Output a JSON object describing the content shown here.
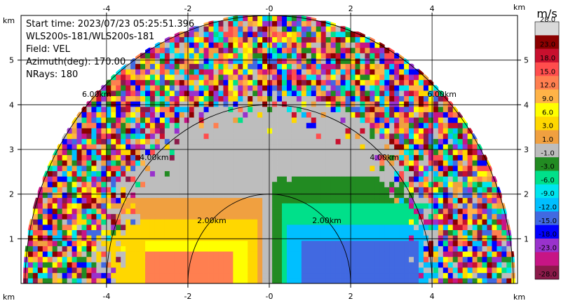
{
  "info": {
    "start_time": "Start time: 2023/07/23 05:25:51.396",
    "instrument": "WLS200s-181/WLS200s-181",
    "field": "Field: VEL",
    "azimuth": "Azimuth(deg): 170.00",
    "nrays": "NRays: 180"
  },
  "colorbar": {
    "unit": "m/s",
    "labels": [
      "28.0",
      "23.0",
      "18.0",
      "15.0",
      "12.0",
      "9.0",
      "6.0",
      "3.0",
      "1.0",
      "-1.0",
      "-3.0",
      "-6.0",
      "-9.0",
      "-12.0",
      "-15.0",
      "-18.0",
      "-23.0",
      "-28.0"
    ],
    "colors": [
      "#d9d9d9",
      "#8b0000",
      "#c8102e",
      "#ff4d4d",
      "#ff7f50",
      "#ffb347",
      "#ffff00",
      "#ffd700",
      "#f0a040",
      "#bdbdbd",
      "#228b22",
      "#00e08a",
      "#00e5ee",
      "#00bfff",
      "#4169e1",
      "#0000ff",
      "#9932cc",
      "#c71585",
      "#8b1a4a"
    ]
  },
  "chart_data": {
    "type": "heatmap",
    "title": "",
    "x_unit": "km",
    "y_unit": "km",
    "x_ticks": [
      "-4",
      "-2",
      "-0",
      "2",
      "4"
    ],
    "y_ticks": [
      "1",
      "2",
      "3",
      "4",
      "5"
    ],
    "xlim": [
      -6.1,
      6.1
    ],
    "ylim": [
      0,
      6.0
    ],
    "ring_labels": [
      "2.00km",
      "4.00km",
      "6.00km"
    ],
    "ring_radii_km": [
      2,
      4,
      6
    ],
    "grid": true,
    "max_range_km": 6.05
  }
}
